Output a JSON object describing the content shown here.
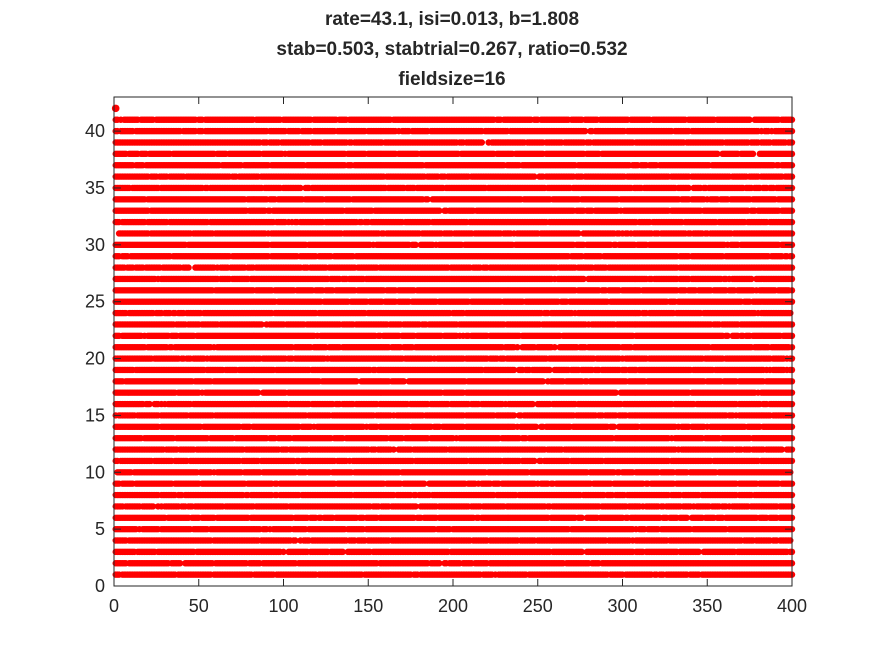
{
  "chart_data": {
    "type": "scatter",
    "title_lines": [
      "rate=43.1, isi=0.013, b=1.808",
      "stab=0.503, stabtrial=0.267, ratio=0.532",
      "fieldsize=16"
    ],
    "xlabel": "",
    "ylabel": "",
    "xlim": [
      0,
      400
    ],
    "ylim": [
      0,
      43
    ],
    "xticks": [
      0,
      50,
      100,
      150,
      200,
      250,
      300,
      350,
      400
    ],
    "yticks": [
      0,
      5,
      10,
      15,
      20,
      25,
      30,
      35,
      40
    ],
    "grid": false,
    "legend": "none",
    "marker_color": "#ff0000",
    "trials": 41,
    "time_range": [
      1,
      400
    ],
    "spike_prob": 0.94,
    "extra_points": [
      {
        "x": 1,
        "y": 42
      }
    ]
  }
}
